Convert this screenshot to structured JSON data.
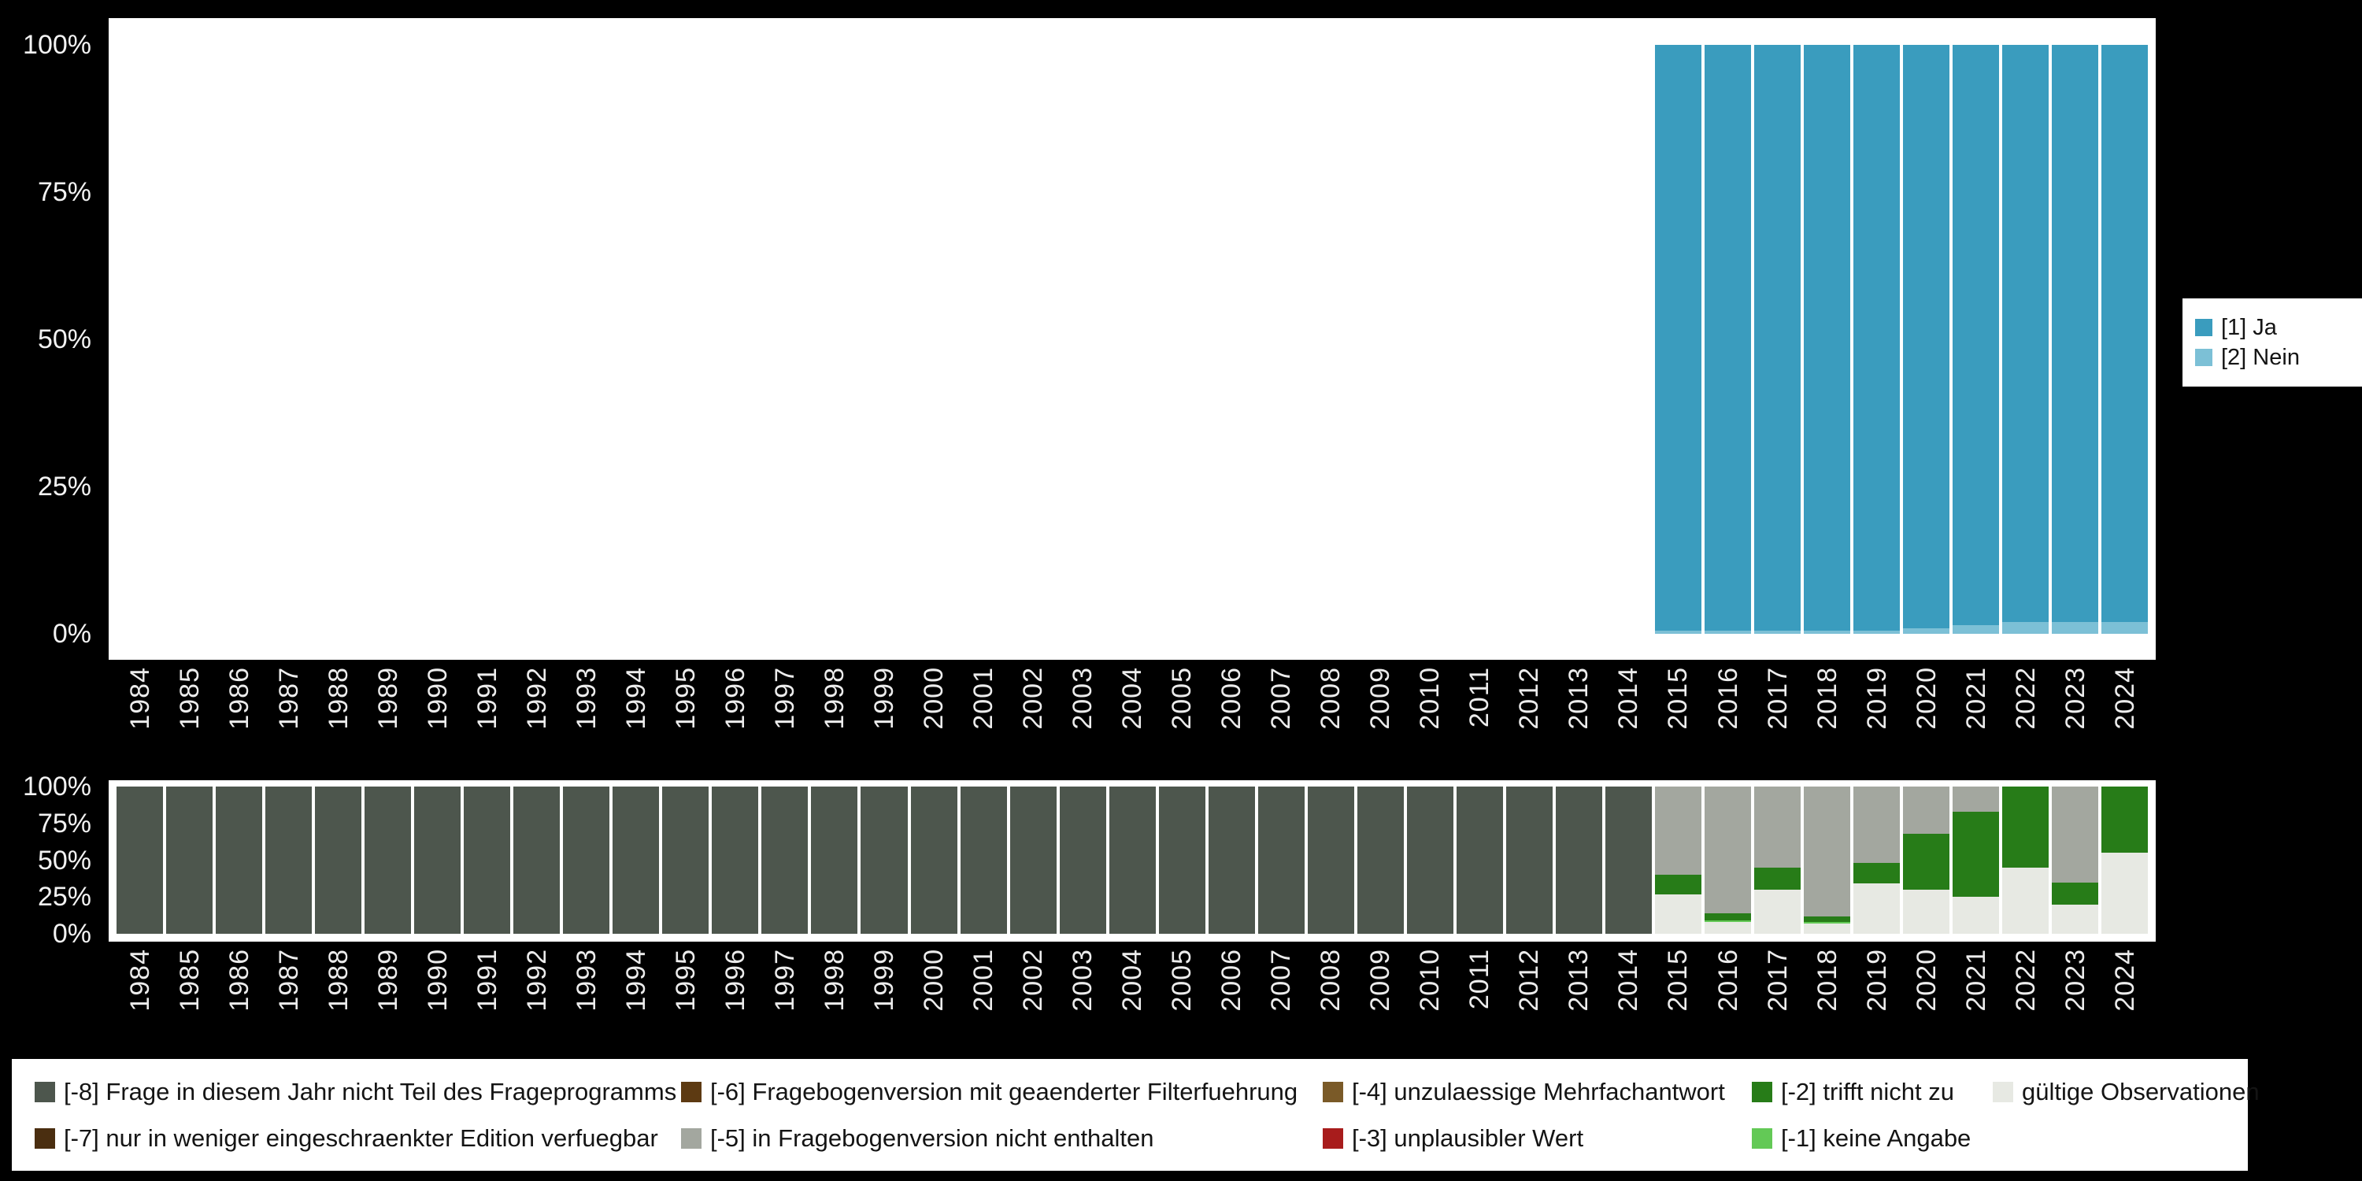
{
  "chart_data": [
    {
      "name": "response-distribution",
      "type": "bar",
      "stacked": true,
      "ylim": [
        0,
        100
      ],
      "yticks": [
        "100%",
        "75%",
        "50%",
        "25%",
        "0%"
      ],
      "grid": false,
      "legend_position": "right",
      "categories": [
        "1984",
        "1985",
        "1986",
        "1987",
        "1988",
        "1989",
        "1990",
        "1991",
        "1992",
        "1993",
        "1994",
        "1995",
        "1996",
        "1997",
        "1998",
        "1999",
        "2000",
        "2001",
        "2002",
        "2003",
        "2004",
        "2005",
        "2006",
        "2007",
        "2008",
        "2009",
        "2010",
        "2011",
        "2012",
        "2013",
        "2014",
        "2015",
        "2016",
        "2017",
        "2018",
        "2019",
        "2020",
        "2021",
        "2022",
        "2023",
        "2024"
      ],
      "series": [
        {
          "name": "[2] Nein",
          "color": "#7cc0d6",
          "values": [
            0,
            0,
            0,
            0,
            0,
            0,
            0,
            0,
            0,
            0,
            0,
            0,
            0,
            0,
            0,
            0,
            0,
            0,
            0,
            0,
            0,
            0,
            0,
            0,
            0,
            0,
            0,
            0,
            0,
            0,
            0,
            0.5,
            0.5,
            0.5,
            0.5,
            0.5,
            1,
            1.5,
            2,
            2,
            2
          ]
        },
        {
          "name": "[1] Ja",
          "color": "#3a9cbe",
          "values": [
            0,
            0,
            0,
            0,
            0,
            0,
            0,
            0,
            0,
            0,
            0,
            0,
            0,
            0,
            0,
            0,
            0,
            0,
            0,
            0,
            0,
            0,
            0,
            0,
            0,
            0,
            0,
            0,
            0,
            0,
            0,
            99.5,
            99.5,
            99.5,
            99.5,
            99.5,
            99,
            98.5,
            98,
            98,
            98
          ]
        }
      ],
      "legend": [
        {
          "label": "[1] Ja",
          "color": "#3a9cbe"
        },
        {
          "label": "[2] Nein",
          "color": "#7cc0d6"
        }
      ]
    },
    {
      "name": "missing-values-distribution",
      "type": "bar",
      "stacked": true,
      "ylim": [
        0,
        100
      ],
      "yticks": [
        "100%",
        "75%",
        "50%",
        "25%",
        "0%"
      ],
      "grid": false,
      "legend_position": "bottom",
      "categories": [
        "1984",
        "1985",
        "1986",
        "1987",
        "1988",
        "1989",
        "1990",
        "1991",
        "1992",
        "1993",
        "1994",
        "1995",
        "1996",
        "1997",
        "1998",
        "1999",
        "2000",
        "2001",
        "2002",
        "2003",
        "2004",
        "2005",
        "2006",
        "2007",
        "2008",
        "2009",
        "2010",
        "2011",
        "2012",
        "2013",
        "2014",
        "2015",
        "2016",
        "2017",
        "2018",
        "2019",
        "2020",
        "2021",
        "2022",
        "2023",
        "2024"
      ],
      "series": [
        {
          "name": "gültige Observationen",
          "color": "#e7e9e3",
          "values": [
            0,
            0,
            0,
            0,
            0,
            0,
            0,
            0,
            0,
            0,
            0,
            0,
            0,
            0,
            0,
            0,
            0,
            0,
            0,
            0,
            0,
            0,
            0,
            0,
            0,
            0,
            0,
            0,
            0,
            0,
            0,
            27,
            8,
            30,
            7,
            34,
            30,
            25,
            45,
            20,
            55
          ]
        },
        {
          "name": "[-1] keine Angabe",
          "color": "#63c956",
          "values": [
            0,
            0,
            0,
            0,
            0,
            0,
            0,
            0,
            0,
            0,
            0,
            0,
            0,
            0,
            0,
            0,
            0,
            0,
            0,
            0,
            0,
            0,
            0,
            0,
            0,
            0,
            0,
            0,
            0,
            0,
            0,
            0,
            1,
            0,
            1,
            0,
            0,
            0,
            0,
            0,
            0
          ]
        },
        {
          "name": "[-2] trifft nicht zu",
          "color": "#277c18",
          "values": [
            0,
            0,
            0,
            0,
            0,
            0,
            0,
            0,
            0,
            0,
            0,
            0,
            0,
            0,
            0,
            0,
            0,
            0,
            0,
            0,
            0,
            0,
            0,
            0,
            0,
            0,
            0,
            0,
            0,
            0,
            0,
            13,
            5,
            15,
            4,
            14,
            38,
            58,
            55,
            15,
            45
          ]
        },
        {
          "name": "[-5] in Fragebogenversion nicht enthalten",
          "color": "#a3a79f",
          "values": [
            0,
            0,
            0,
            0,
            0,
            0,
            0,
            0,
            0,
            0,
            0,
            0,
            0,
            0,
            0,
            0,
            0,
            0,
            0,
            0,
            0,
            0,
            0,
            0,
            0,
            0,
            0,
            0,
            0,
            0,
            0,
            60,
            86,
            55,
            88,
            52,
            32,
            17,
            0,
            65,
            0
          ]
        },
        {
          "name": "[-8] Frage in diesem Jahr nicht Teil des Frageprogramms",
          "color": "#4d564d",
          "values": [
            100,
            100,
            100,
            100,
            100,
            100,
            100,
            100,
            100,
            100,
            100,
            100,
            100,
            100,
            100,
            100,
            100,
            100,
            100,
            100,
            100,
            100,
            100,
            100,
            100,
            100,
            100,
            100,
            100,
            100,
            100,
            0,
            0,
            0,
            0,
            0,
            0,
            0,
            0,
            0,
            0
          ]
        }
      ]
    }
  ],
  "legend_bottom": {
    "rows": [
      [
        {
          "label": "[-8] Frage in diesem Jahr nicht Teil des Frageprogramms",
          "color": "#4d564d"
        },
        {
          "label": "[-6] Fragebogenversion mit geaenderter Filterfuehrung",
          "color": "#5d3a12"
        },
        {
          "label": "[-4] unzulaessige Mehrfachantwort",
          "color": "#7a5a28"
        },
        {
          "label": "[-2] trifft nicht zu",
          "color": "#277c18"
        },
        {
          "label": "gültige Observationen",
          "color": "#e7e9e3"
        }
      ],
      [
        {
          "label": "[-7] nur in weniger eingeschraenkter Edition verfuegbar",
          "color": "#4a2e10"
        },
        {
          "label": "[-5] in Fragebogenversion nicht enthalten",
          "color": "#a3a79f"
        },
        {
          "label": "[-3] unplausibler Wert",
          "color": "#a81c1c"
        },
        {
          "label": "[-1] keine Angabe",
          "color": "#63c956"
        }
      ]
    ]
  }
}
